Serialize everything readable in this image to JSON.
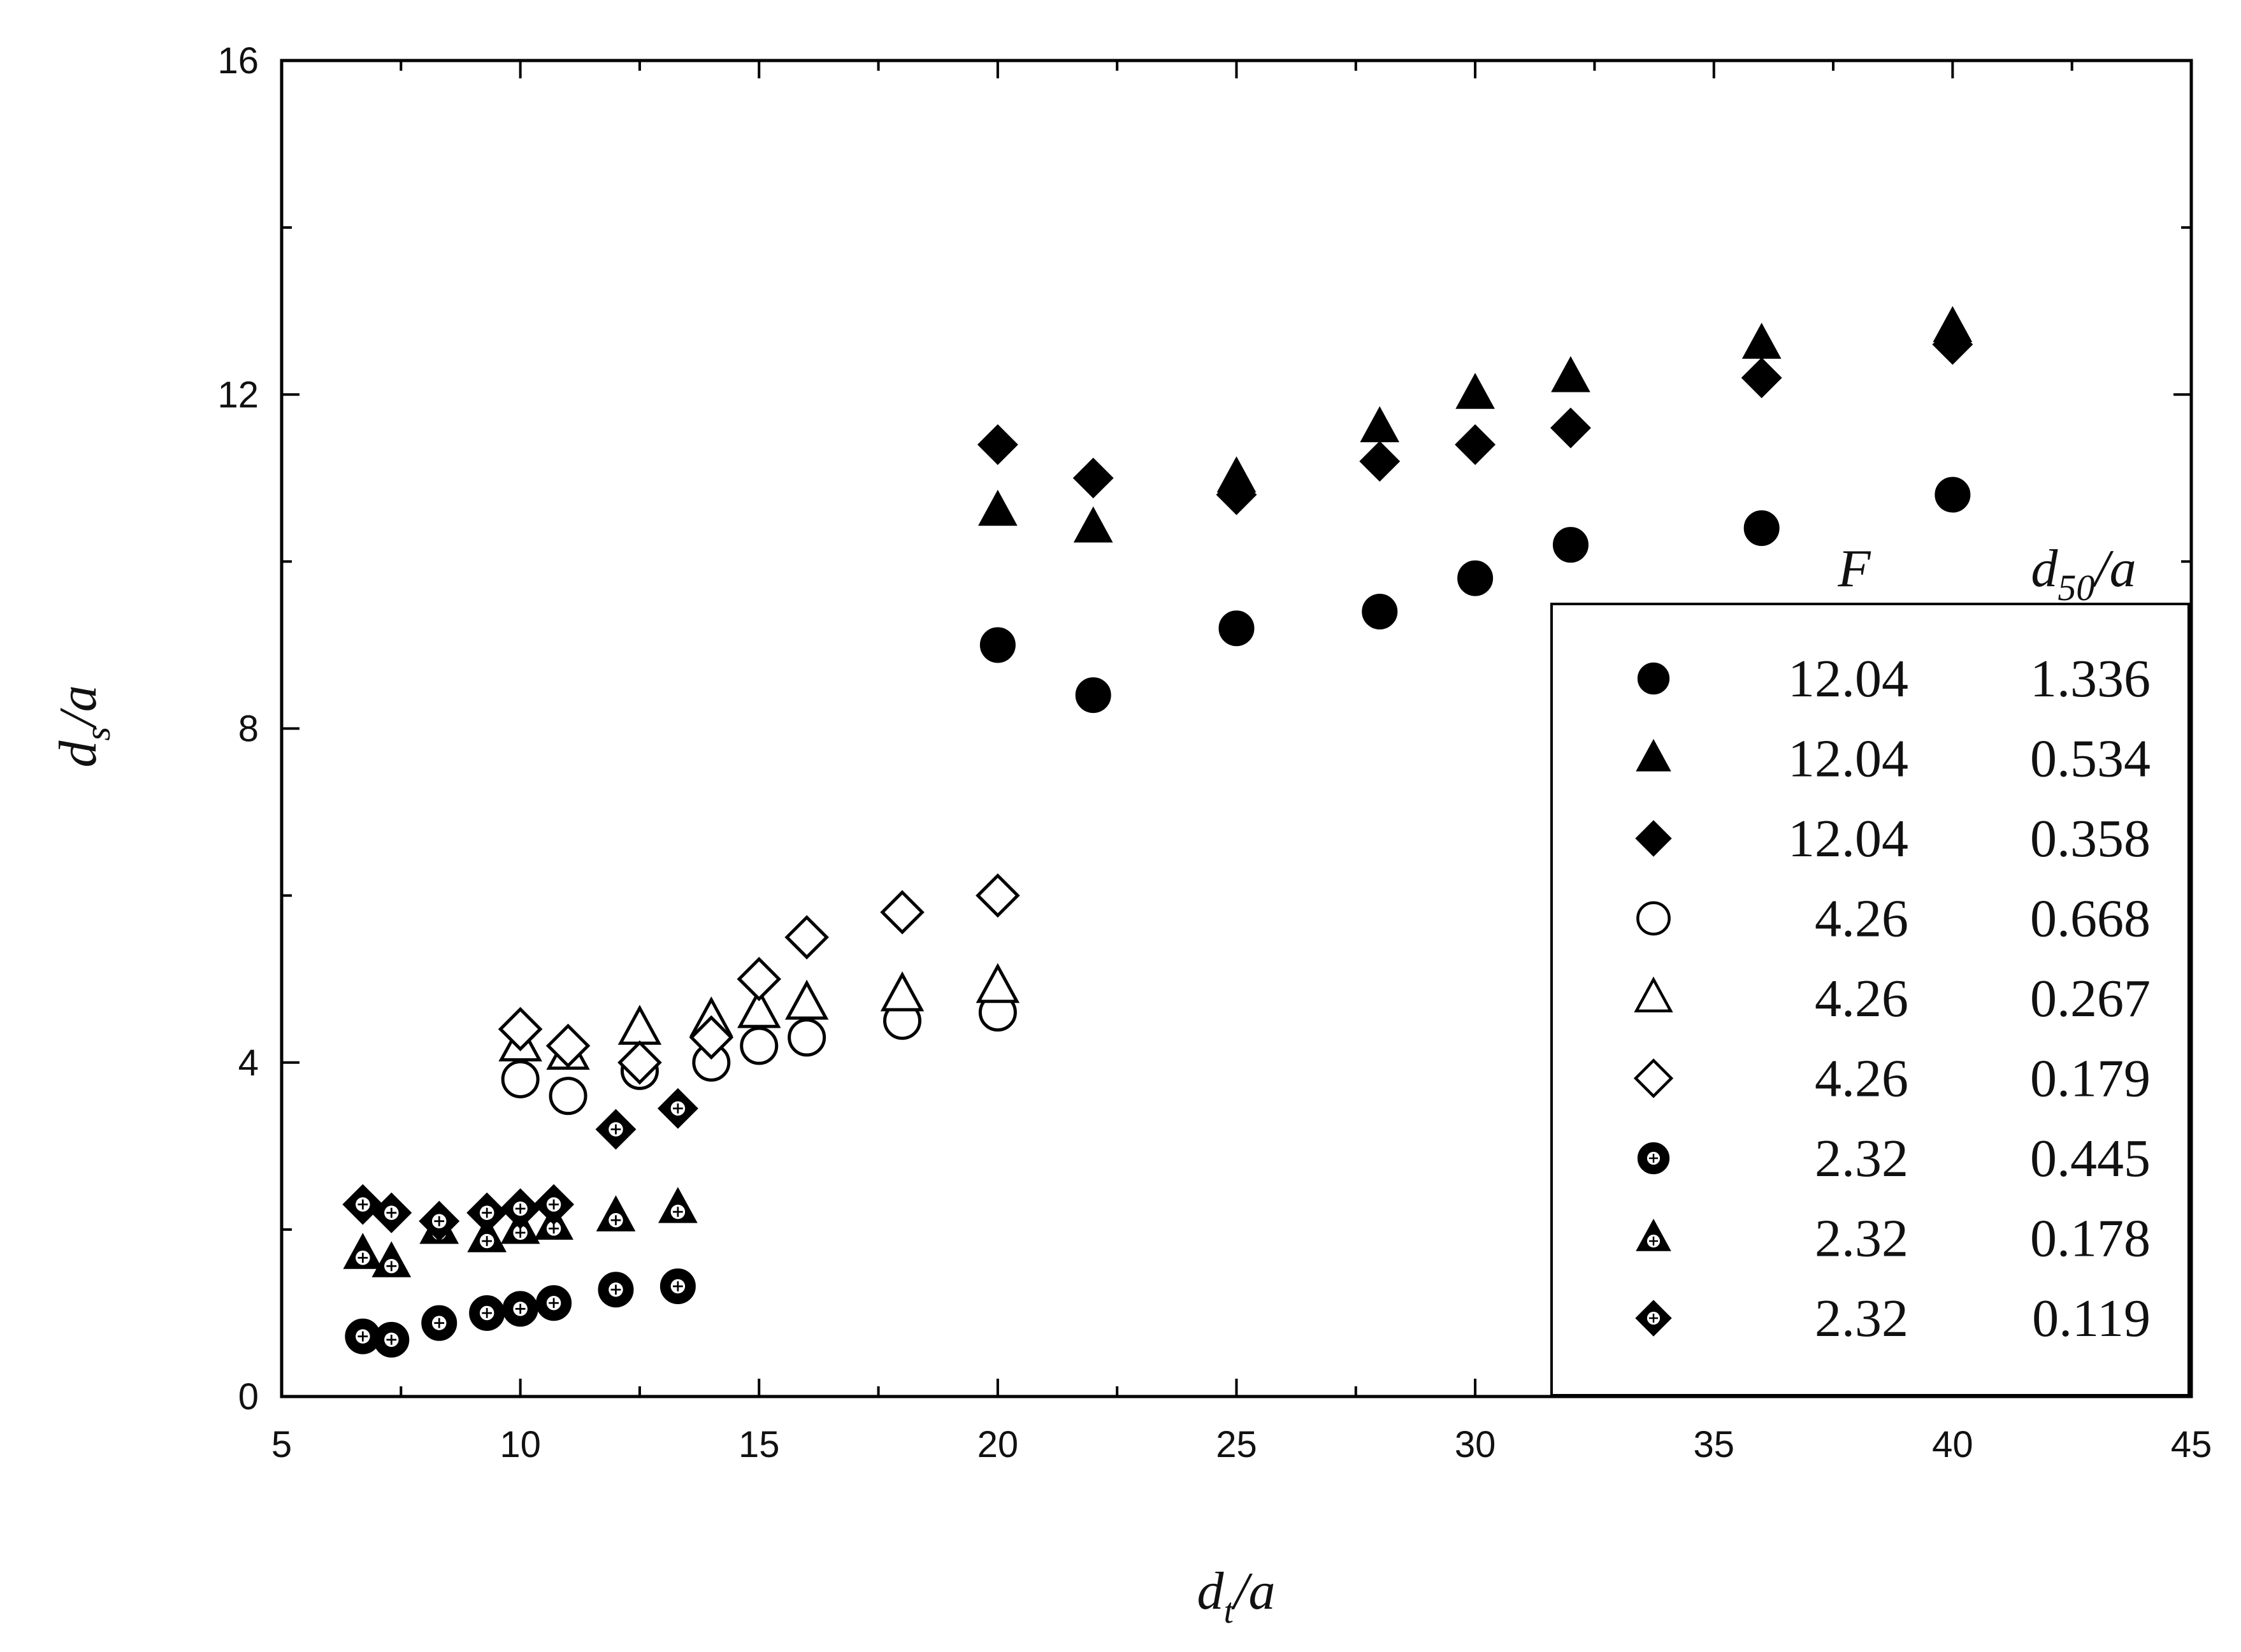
{
  "chart_data": {
    "type": "scatter",
    "xlabel": {
      "main": "d",
      "sub": "t",
      "rest": "/a"
    },
    "ylabel": {
      "main": "d",
      "sub": "s",
      "rest": "/a"
    },
    "xlim": [
      5,
      45
    ],
    "ylim": [
      0,
      16
    ],
    "x_ticks": [
      "5",
      "10",
      "15",
      "20",
      "25",
      "30",
      "35",
      "40",
      "45"
    ],
    "y_ticks": [
      "0",
      "4",
      "8",
      "12",
      "16"
    ],
    "grid": false,
    "legend_position": "bottom-right",
    "legend_headers": {
      "F": "F",
      "d50": {
        "main": "d",
        "sub": "50",
        "rest": "/a"
      }
    },
    "series": [
      {
        "F": "12.04",
        "d50": "1.336",
        "marker": "circle",
        "fill": "solid",
        "points": [
          [
            20,
            9.0
          ],
          [
            22,
            8.4
          ],
          [
            25,
            9.2
          ],
          [
            28,
            9.4
          ],
          [
            30,
            9.8
          ],
          [
            32,
            10.2
          ],
          [
            36,
            10.4
          ],
          [
            40,
            10.8
          ]
        ]
      },
      {
        "F": "12.04",
        "d50": "0.534",
        "marker": "triangle",
        "fill": "solid",
        "points": [
          [
            20,
            10.6
          ],
          [
            22,
            10.4
          ],
          [
            25,
            11.0
          ],
          [
            28,
            11.6
          ],
          [
            30,
            12.0
          ],
          [
            32,
            12.2
          ],
          [
            36,
            12.6
          ],
          [
            40,
            12.8
          ]
        ]
      },
      {
        "F": "12.04",
        "d50": "0.358",
        "marker": "diamond",
        "fill": "solid",
        "points": [
          [
            20,
            11.4
          ],
          [
            22,
            11.0
          ],
          [
            25,
            10.8
          ],
          [
            28,
            11.2
          ],
          [
            30,
            11.4
          ],
          [
            32,
            11.6
          ],
          [
            36,
            12.2
          ],
          [
            40,
            12.6
          ]
        ]
      },
      {
        "F": "4.26",
        "d50": "0.668",
        "marker": "circle",
        "fill": "open",
        "points": [
          [
            10,
            3.8
          ],
          [
            11,
            3.6
          ],
          [
            12.5,
            3.9
          ],
          [
            14,
            4.0
          ],
          [
            15,
            4.2
          ],
          [
            16,
            4.3
          ],
          [
            18,
            4.5
          ],
          [
            20,
            4.6
          ]
        ]
      },
      {
        "F": "4.26",
        "d50": "0.267",
        "marker": "triangle",
        "fill": "open",
        "points": [
          [
            10,
            4.2
          ],
          [
            11,
            4.1
          ],
          [
            12.5,
            4.4
          ],
          [
            14,
            4.5
          ],
          [
            15,
            4.6
          ],
          [
            16,
            4.7
          ],
          [
            18,
            4.8
          ],
          [
            20,
            4.9
          ]
        ]
      },
      {
        "F": "4.26",
        "d50": "0.179",
        "marker": "diamond",
        "fill": "open",
        "points": [
          [
            10,
            4.4
          ],
          [
            11,
            4.2
          ],
          [
            12.5,
            4.0
          ],
          [
            14,
            4.3
          ],
          [
            15,
            5.0
          ],
          [
            16,
            5.5
          ],
          [
            18,
            5.8
          ],
          [
            20,
            6.0
          ]
        ]
      },
      {
        "F": "2.32",
        "d50": "0.445",
        "marker": "circle",
        "fill": "dotted",
        "points": [
          [
            6.7,
            0.72
          ],
          [
            7.3,
            0.68
          ],
          [
            8.3,
            0.88
          ],
          [
            9.3,
            1.0
          ],
          [
            10,
            1.05
          ],
          [
            10.7,
            1.12
          ],
          [
            12,
            1.28
          ],
          [
            13.3,
            1.32
          ]
        ]
      },
      {
        "F": "2.32",
        "d50": "0.178",
        "marker": "triangle",
        "fill": "dotted",
        "points": [
          [
            6.7,
            1.7
          ],
          [
            7.3,
            1.6
          ],
          [
            8.3,
            2.0
          ],
          [
            9.3,
            1.9
          ],
          [
            10,
            2.0
          ],
          [
            10.7,
            2.05
          ],
          [
            12,
            2.15
          ],
          [
            13.3,
            2.25
          ]
        ]
      },
      {
        "F": "2.32",
        "d50": "0.119",
        "marker": "diamond",
        "fill": "dotted",
        "points": [
          [
            6.7,
            2.3
          ],
          [
            7.3,
            2.2
          ],
          [
            8.3,
            2.1
          ],
          [
            9.3,
            2.2
          ],
          [
            10,
            2.25
          ],
          [
            10.7,
            2.3
          ],
          [
            12,
            3.2
          ],
          [
            13.3,
            3.45
          ]
        ]
      }
    ]
  }
}
